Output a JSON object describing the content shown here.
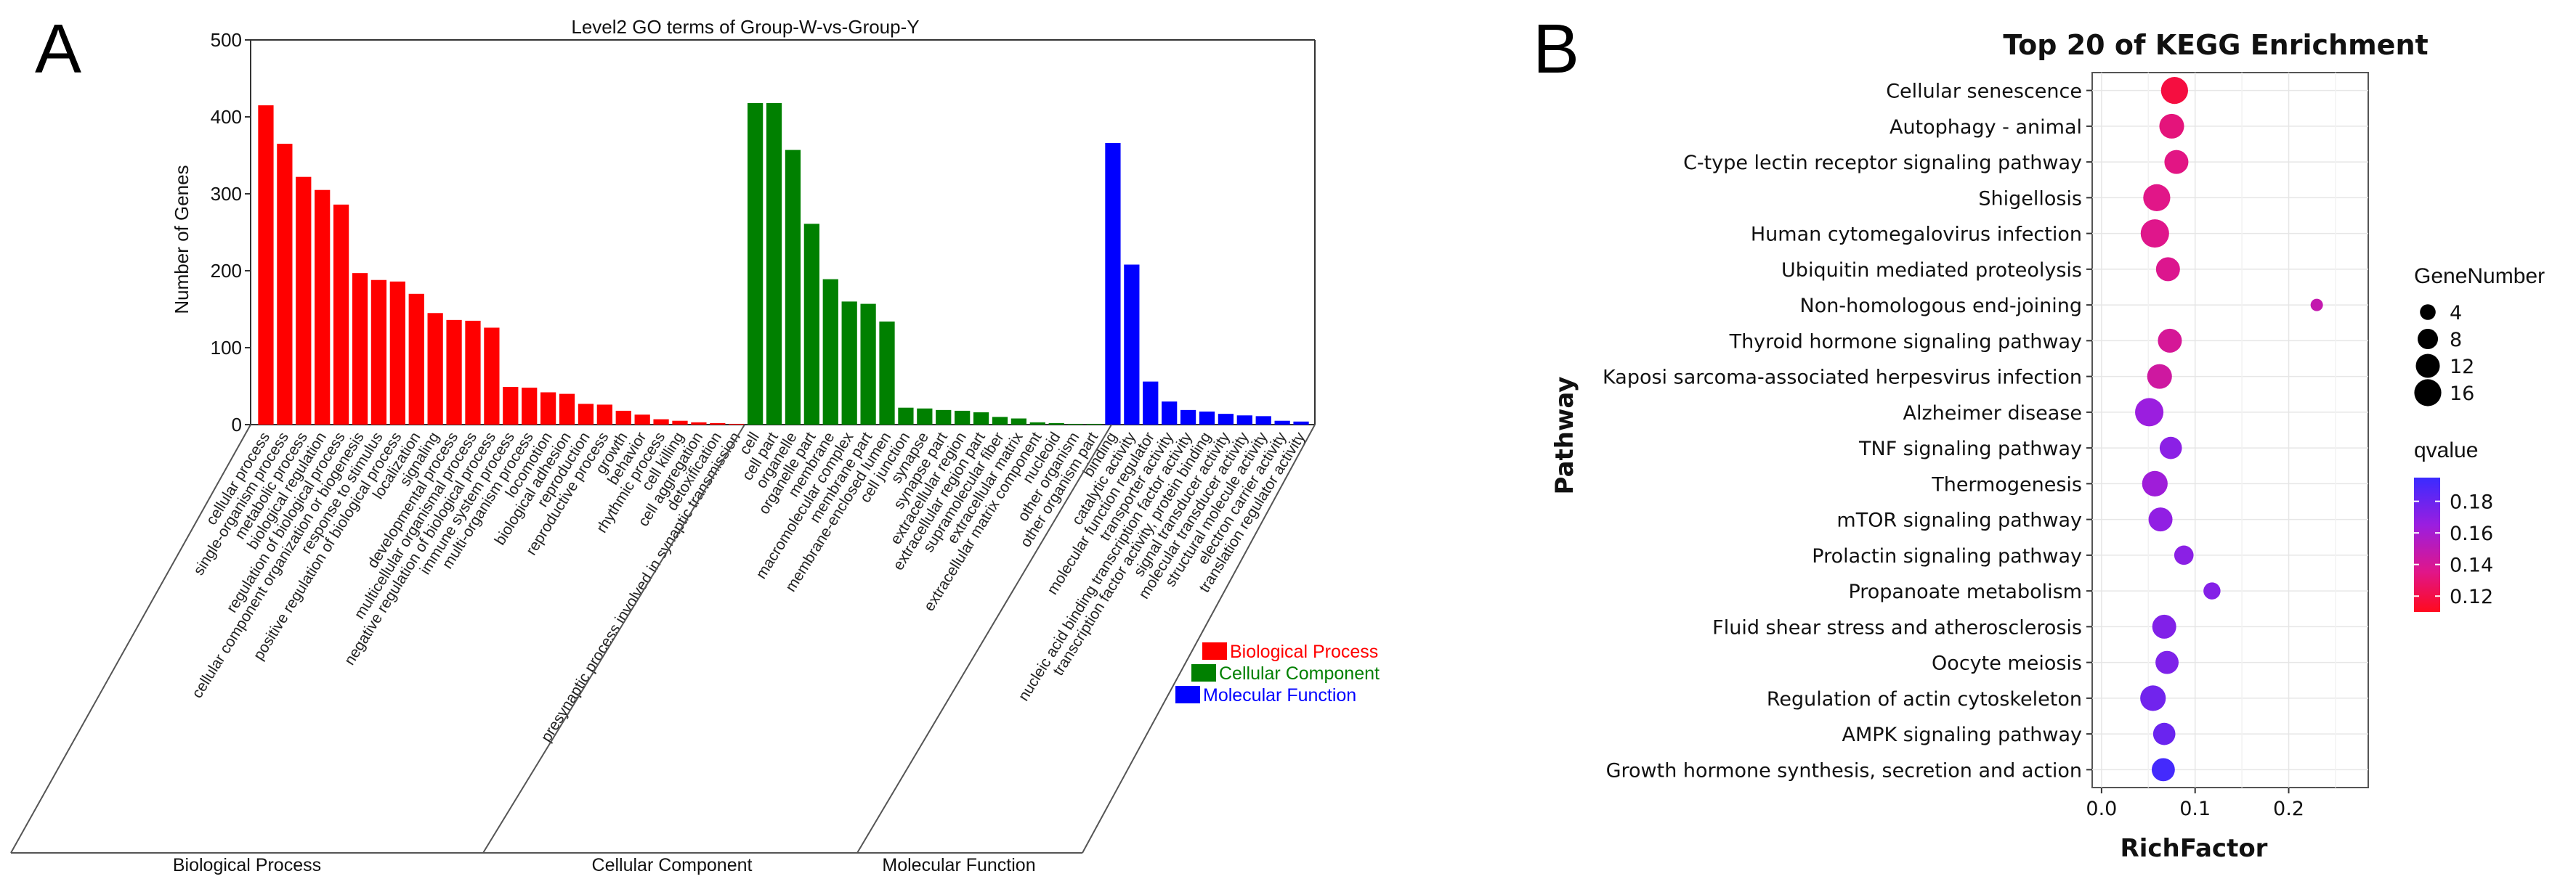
{
  "chart_data": [
    {
      "panel": "A",
      "type": "bar",
      "title": "Level2 GO terms of Group-W-vs-Group-Y",
      "ylabel": "Number of Genes",
      "xlabel": "",
      "ylim": [
        0,
        500
      ],
      "yticks": [
        0,
        100,
        200,
        300,
        400,
        500
      ],
      "legend": {
        "position": "right",
        "entries": [
          {
            "name": "Biological Process",
            "color": "#ff0000"
          },
          {
            "name": "Cellular Component",
            "color": "#008000"
          },
          {
            "name": "Molecular Function",
            "color": "#0000ff"
          }
        ]
      },
      "groups": [
        {
          "name": "Biological Process",
          "color": "#ff0000",
          "categories": [
            "cellular process",
            "single-organism process",
            "metabolic process",
            "biological regulation",
            "regulation of biological process",
            "cellular component organization or biogenesis",
            "response to stimulus",
            "positive regulation of biological process",
            "localization",
            "signaling",
            "developmental process",
            "multicellular organismal process",
            "negative regulation of biological process",
            "immune system process",
            "multi-organism process",
            "locomotion",
            "biological adhesion",
            "reproduction",
            "reproductive process",
            "growth",
            "behavior",
            "rhythmic process",
            "cell killing",
            "cell aggregation",
            "detoxification",
            "presynaptic process involved in synaptic transmission"
          ],
          "values": [
            415,
            365,
            322,
            305,
            286,
            197,
            188,
            186,
            170,
            145,
            136,
            135,
            126,
            49,
            48,
            42,
            40,
            27,
            26,
            18,
            13,
            7,
            5,
            3,
            2,
            1
          ]
        },
        {
          "name": "Cellular Component",
          "color": "#008000",
          "categories": [
            "cell",
            "cell part",
            "organelle",
            "organelle part",
            "membrane",
            "macromolecular complex",
            "membrane part",
            "membrane-enclosed lumen",
            "cell junction",
            "synapse",
            "synapse part",
            "extracellular region",
            "extracellular region part",
            "supramolecular fiber",
            "extracellular matrix",
            "extracellular matrix component",
            "nucleoid",
            "other organism",
            "other organism part"
          ],
          "values": [
            418,
            418,
            357,
            261,
            189,
            160,
            157,
            134,
            22,
            21,
            19,
            18,
            16,
            10,
            8,
            3,
            2,
            1,
            1
          ]
        },
        {
          "name": "Molecular Function",
          "color": "#0000ff",
          "categories": [
            "binding",
            "catalytic activity",
            "molecular function regulator",
            "transporter activity",
            "nucleic acid binding transcription factor activity",
            "transcription factor activity, protein binding",
            "signal transducer activity",
            "molecular transducer activity",
            "structural molecule activity",
            "electron carrier activity",
            "translation regulator activity"
          ],
          "values": [
            366,
            208,
            56,
            30,
            19,
            17,
            14,
            12,
            11,
            5,
            4
          ]
        }
      ]
    },
    {
      "panel": "B",
      "type": "scatter",
      "title": "Top 20 of KEGG Enrichment",
      "xlabel": "RichFactor",
      "ylabel": "Pathway",
      "xlim": [
        -0.01,
        0.285
      ],
      "xticks": [
        "0.0",
        "0.1",
        "0.2"
      ],
      "size_legend": {
        "title": "GeneNumber",
        "values": [
          4,
          8,
          12,
          16
        ]
      },
      "color_legend": {
        "title": "qvalue",
        "range": [
          0.11,
          0.195
        ],
        "ticks": [
          "0.18",
          "0.16",
          "0.14",
          "0.12"
        ]
      },
      "pathways": [
        "Cellular senescence",
        "Autophagy - animal",
        "C-type lectin receptor signaling pathway",
        "Shigellosis",
        "Human cytomegalovirus infection",
        "Ubiquitin mediated proteolysis",
        "Non-homologous end-joining",
        "Thyroid hormone signaling pathway",
        "Kaposi sarcoma-associated herpesvirus infection",
        "Alzheimer disease",
        "TNF signaling pathway",
        "Thermogenesis",
        "mTOR signaling pathway",
        "Prolactin signaling pathway",
        "Propanoate metabolism",
        "Fluid shear stress and atherosclerosis",
        "Oocyte meiosis",
        "Regulation of actin cytoskeleton",
        "AMPK signaling pathway",
        "Growth hormone synthesis, secretion and action"
      ],
      "rich_factor": [
        0.078,
        0.075,
        0.08,
        0.059,
        0.057,
        0.071,
        0.23,
        0.073,
        0.062,
        0.051,
        0.074,
        0.057,
        0.063,
        0.088,
        0.118,
        0.067,
        0.07,
        0.055,
        0.067,
        0.066
      ],
      "gene_number": [
        16,
        13,
        12,
        16,
        18,
        12,
        2,
        12,
        13,
        18,
        10,
        14,
        12,
        7,
        5,
        12,
        11,
        14,
        10,
        11
      ],
      "qvalue": [
        0.118,
        0.132,
        0.134,
        0.135,
        0.136,
        0.137,
        0.148,
        0.14,
        0.143,
        0.165,
        0.17,
        0.163,
        0.168,
        0.17,
        0.172,
        0.173,
        0.174,
        0.178,
        0.18,
        0.192
      ]
    }
  ],
  "panel_labels": {
    "a": "A",
    "b": "B"
  },
  "grid_labels": {
    "bp": "Biological Process",
    "cc": "Cellular Component",
    "mf": "Molecular Function"
  }
}
